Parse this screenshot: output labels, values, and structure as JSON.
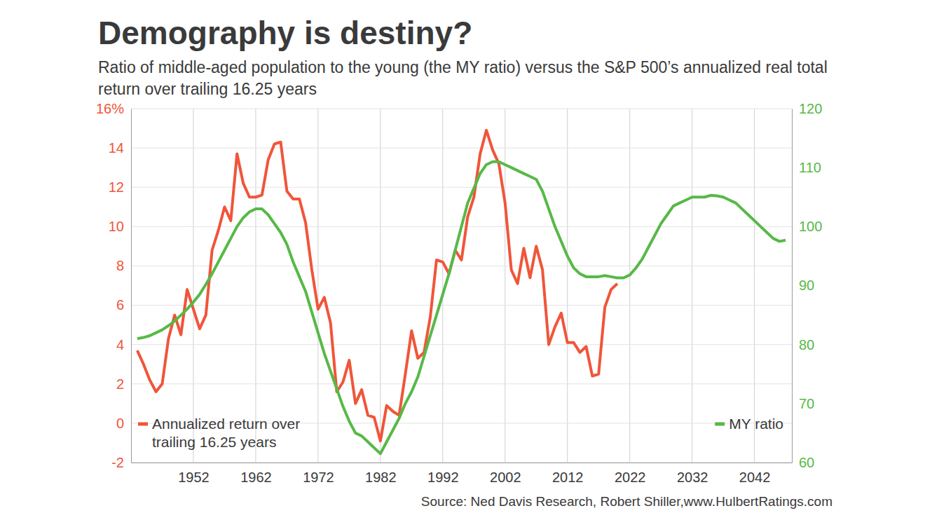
{
  "chart_data": {
    "type": "line",
    "title": "Demography is destiny?",
    "subtitle": "Ratio of middle-aged population to the young (the MY ratio) versus the S&P 500’s annualized real total return over trailing 16.25 years",
    "source": "Source: Ned Davis Research, Robert Shiller,www.HulbertRatings.com",
    "x": [
      1943,
      1944,
      1945,
      1946,
      1947,
      1948,
      1949,
      1950,
      1951,
      1952,
      1953,
      1954,
      1955,
      1956,
      1957,
      1958,
      1959,
      1960,
      1961,
      1962,
      1963,
      1964,
      1965,
      1966,
      1967,
      1968,
      1969,
      1970,
      1971,
      1972,
      1973,
      1974,
      1975,
      1976,
      1977,
      1978,
      1979,
      1980,
      1981,
      1982,
      1983,
      1984,
      1985,
      1986,
      1987,
      1988,
      1989,
      1990,
      1991,
      1992,
      1993,
      1994,
      1995,
      1996,
      1997,
      1998,
      1999,
      2000,
      2001,
      2002,
      2003,
      2004,
      2005,
      2006,
      2007,
      2008,
      2009,
      2010,
      2011,
      2012,
      2013,
      2014,
      2015,
      2016,
      2017,
      2018,
      2019,
      2020,
      2021,
      2022,
      2023,
      2024,
      2025,
      2026,
      2027,
      2028,
      2029,
      2030,
      2031,
      2032,
      2033,
      2034,
      2035,
      2036,
      2037,
      2038,
      2039,
      2040,
      2041,
      2042,
      2043,
      2044,
      2045,
      2046,
      2047
    ],
    "xlim": [
      1942,
      2048
    ],
    "xticks": [
      1952,
      1962,
      1972,
      1982,
      1992,
      2002,
      2012,
      2022,
      2032,
      2042
    ],
    "ylim": [
      -2,
      16
    ],
    "yticks": [
      -2,
      0,
      2,
      4,
      6,
      8,
      10,
      12,
      14,
      {
        "value": 16,
        "label": "16%"
      }
    ],
    "y2lim": [
      60,
      120
    ],
    "y2ticks": [
      60,
      70,
      80,
      90,
      100,
      110,
      120
    ],
    "grid": true,
    "legend": "bottom",
    "series": [
      {
        "name": "Annualized return over trailing 16.25 years",
        "color": "#f0553a",
        "values": [
          3.7,
          3.0,
          2.2,
          1.6,
          2.0,
          4.3,
          5.5,
          4.5,
          6.8,
          5.8,
          4.8,
          5.5,
          8.8,
          9.8,
          11.0,
          10.3,
          13.7,
          12.2,
          11.5,
          11.5,
          11.6,
          13.4,
          14.2,
          14.3,
          11.8,
          11.4,
          11.4,
          10.2,
          7.8,
          5.8,
          6.4,
          5.1,
          1.6,
          2.1,
          3.2,
          1.0,
          1.7,
          0.4,
          0.3,
          -0.9,
          0.9,
          0.6,
          0.4,
          2.5,
          4.7,
          3.3,
          3.6,
          5.4,
          8.3,
          8.2,
          7.6,
          8.8,
          8.3,
          10.5,
          11.5,
          13.7,
          14.9,
          13.9,
          13.2,
          11.2,
          7.8,
          7.1,
          8.9,
          7.4,
          9.0,
          7.8,
          4.0,
          4.9,
          5.6,
          4.1,
          4.1,
          3.6,
          3.9,
          2.4,
          2.5,
          5.9,
          6.8,
          7.1,
          null,
          null,
          null,
          null,
          null,
          null,
          null,
          null,
          null,
          null,
          null,
          null,
          null,
          null,
          null,
          null,
          null,
          null,
          null,
          null,
          null,
          null,
          null,
          null,
          null,
          null,
          null
        ]
      },
      {
        "name": "MY ratio",
        "color": "#57b947",
        "axis": "y2",
        "values": [
          81,
          81.2,
          81.5,
          82,
          82.5,
          83.2,
          84,
          85,
          86,
          87.2,
          88.5,
          90.2,
          92,
          94,
          96,
          98,
          100,
          101.5,
          102.5,
          103,
          103,
          102,
          100.5,
          99,
          97,
          94,
          91.5,
          89,
          85.5,
          82,
          78.5,
          75.5,
          72.5,
          69.5,
          67,
          65,
          64.5,
          63.5,
          62.5,
          61.5,
          63.5,
          65.5,
          67.5,
          70,
          72,
          74.5,
          78,
          81.5,
          85,
          88.5,
          92,
          96,
          100,
          104,
          106.5,
          109,
          110.5,
          111,
          111,
          110.5,
          110,
          109.5,
          109,
          108.5,
          108,
          106,
          103,
          100,
          97.5,
          95,
          93,
          92,
          91.5,
          91.5,
          91.5,
          91.7,
          91.5,
          91.3,
          91.3,
          91.8,
          93,
          94.5,
          96.5,
          98.5,
          100.5,
          102,
          103.5,
          104,
          104.5,
          105,
          105,
          105,
          105.3,
          105.2,
          105,
          104.5,
          104,
          103,
          102,
          101,
          100,
          99,
          98,
          97.5,
          97.7
        ]
      }
    ]
  }
}
